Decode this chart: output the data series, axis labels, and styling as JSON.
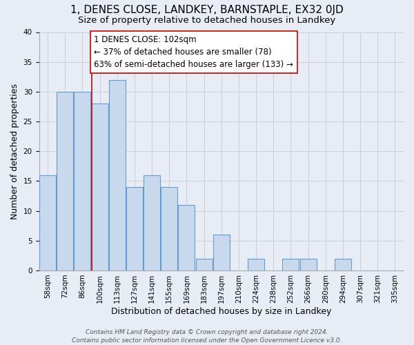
{
  "title": "1, DENES CLOSE, LANDKEY, BARNSTAPLE, EX32 0JD",
  "subtitle": "Size of property relative to detached houses in Landkey",
  "xlabel": "Distribution of detached houses by size in Landkey",
  "ylabel": "Number of detached properties",
  "bin_labels": [
    "58sqm",
    "72sqm",
    "86sqm",
    "100sqm",
    "113sqm",
    "127sqm",
    "141sqm",
    "155sqm",
    "169sqm",
    "183sqm",
    "197sqm",
    "210sqm",
    "224sqm",
    "238sqm",
    "252sqm",
    "266sqm",
    "280sqm",
    "294sqm",
    "307sqm",
    "321sqm",
    "335sqm"
  ],
  "bar_heights": [
    16,
    30,
    30,
    28,
    32,
    14,
    16,
    14,
    11,
    2,
    6,
    0,
    2,
    0,
    2,
    2,
    0,
    2,
    0,
    0,
    0
  ],
  "bar_color": "#c8d9ee",
  "bar_edge_color": "#6699cc",
  "vline_label_index": 3,
  "vline_color": "#cc0000",
  "annotation_text": "1 DENES CLOSE: 102sqm\n← 37% of detached houses are smaller (78)\n63% of semi-detached houses are larger (133) →",
  "annotation_box_facecolor": "#ffffff",
  "annotation_box_edgecolor": "#cc0000",
  "ylim": [
    0,
    40
  ],
  "yticks": [
    0,
    5,
    10,
    15,
    20,
    25,
    30,
    35,
    40
  ],
  "grid_color": "#c8d0df",
  "background_color": "#e8edf5",
  "footer_text": "Contains HM Land Registry data © Crown copyright and database right 2024.\nContains public sector information licensed under the Open Government Licence v3.0.",
  "title_fontsize": 11,
  "subtitle_fontsize": 9.5,
  "axis_label_fontsize": 9,
  "tick_fontsize": 7.5,
  "annotation_fontsize": 8.5,
  "footer_fontsize": 6.5
}
